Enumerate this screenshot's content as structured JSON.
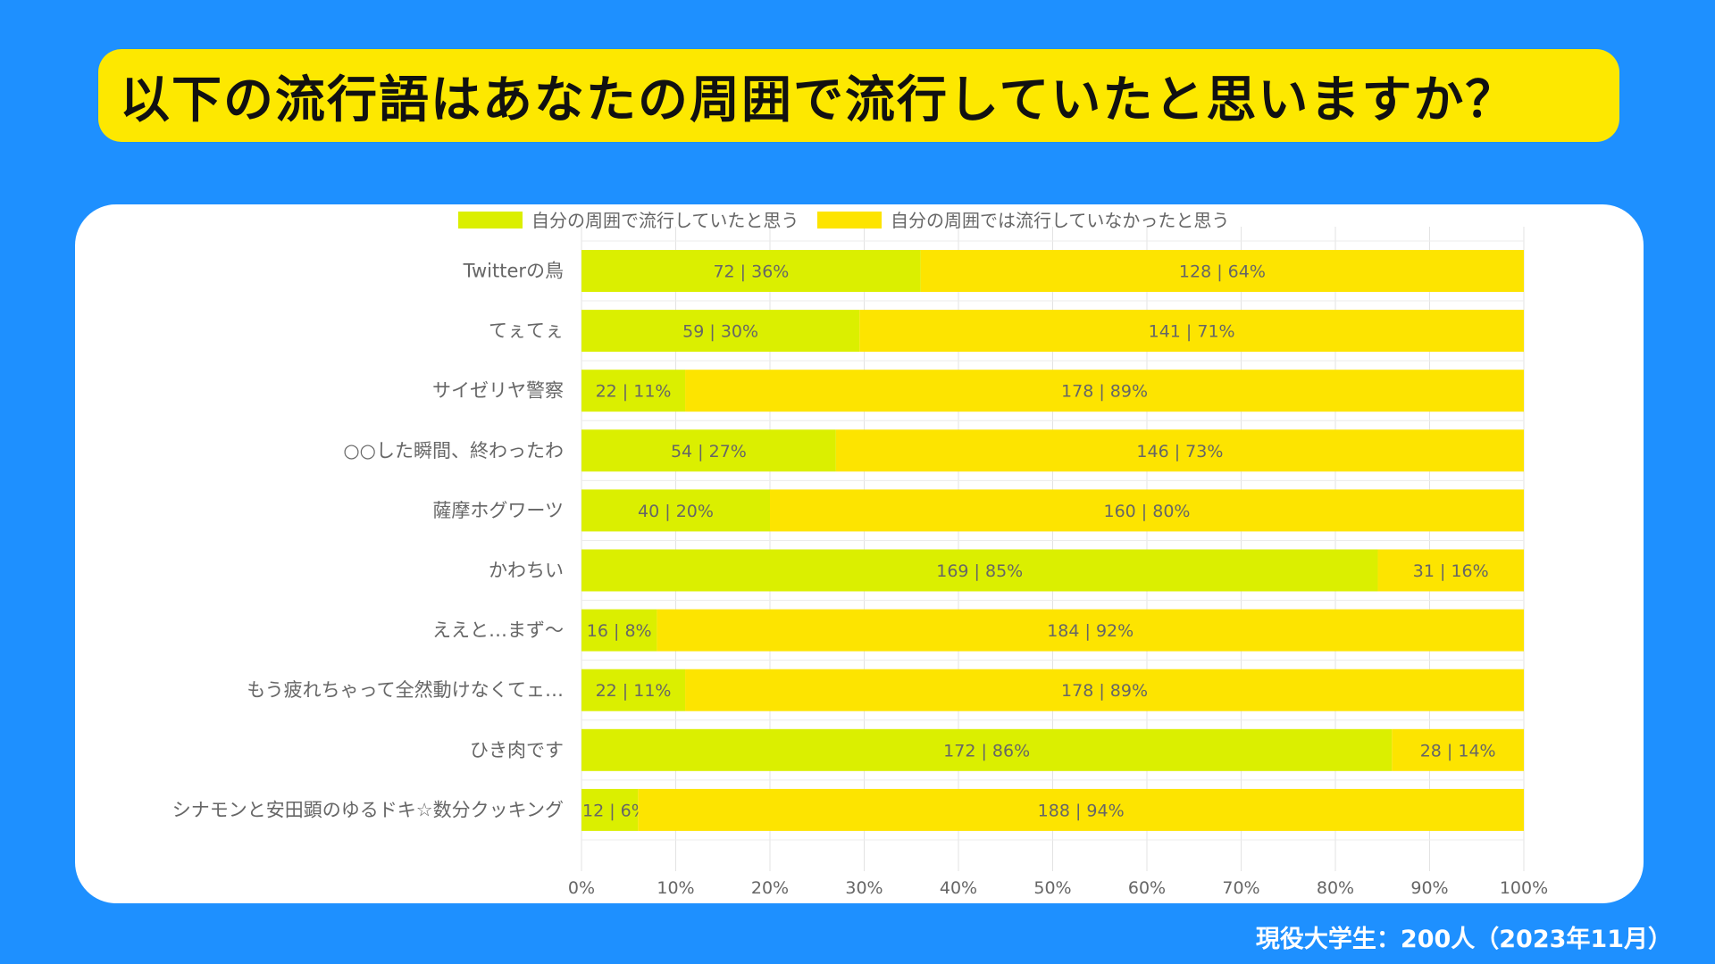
{
  "title": "以下の流行語はあなたの周囲で流行していたと思いますか？",
  "footnote": "現役大学生：200人（2023年11月）",
  "chart_data": {
    "type": "bar",
    "orientation": "horizontal",
    "stacked": "percent",
    "categories": [
      "Twitterの鳥",
      "てぇてぇ",
      "サイゼリヤ警察",
      "○○した瞬間、終わったわ",
      "薩摩ホグワーツ",
      "かわちい",
      "ええと…まず～",
      "もう疲れちゃって全然動けなくてェ…",
      "ひき肉です",
      "シナモンと安田顕のゆるドキ☆数分クッキング"
    ],
    "series": [
      {
        "name": "自分の周囲で流行していたと思う",
        "color": "#dbef00",
        "values": [
          72,
          59,
          22,
          54,
          40,
          169,
          16,
          22,
          172,
          12
        ],
        "percents": [
          36,
          30,
          11,
          27,
          20,
          85,
          8,
          11,
          86,
          6
        ],
        "labels": [
          "72 | 36%",
          "59 | 30%",
          "22 | 11%",
          "54 | 27%",
          "40 | 20%",
          "169 | 85%",
          "16 | 8%",
          "22 | 11%",
          "172 | 86%",
          "12 | 6%"
        ]
      },
      {
        "name": "自分の周囲では流行していなかったと思う",
        "color": "#fde400",
        "values": [
          128,
          141,
          178,
          146,
          160,
          31,
          184,
          178,
          28,
          188
        ],
        "percents": [
          64,
          71,
          89,
          73,
          80,
          16,
          92,
          89,
          14,
          94
        ],
        "labels": [
          "128 | 64%",
          "141 | 71%",
          "178 | 89%",
          "146 | 73%",
          "160 | 80%",
          "31 | 16%",
          "184 | 92%",
          "178 | 89%",
          "28 | 14%",
          "188 | 94%"
        ]
      }
    ],
    "x_ticks": [
      "0%",
      "10%",
      "20%",
      "30%",
      "40%",
      "50%",
      "60%",
      "70%",
      "80%",
      "90%",
      "100%"
    ],
    "xlim": [
      0,
      100
    ],
    "legend_position": "top-center",
    "grid": true
  }
}
